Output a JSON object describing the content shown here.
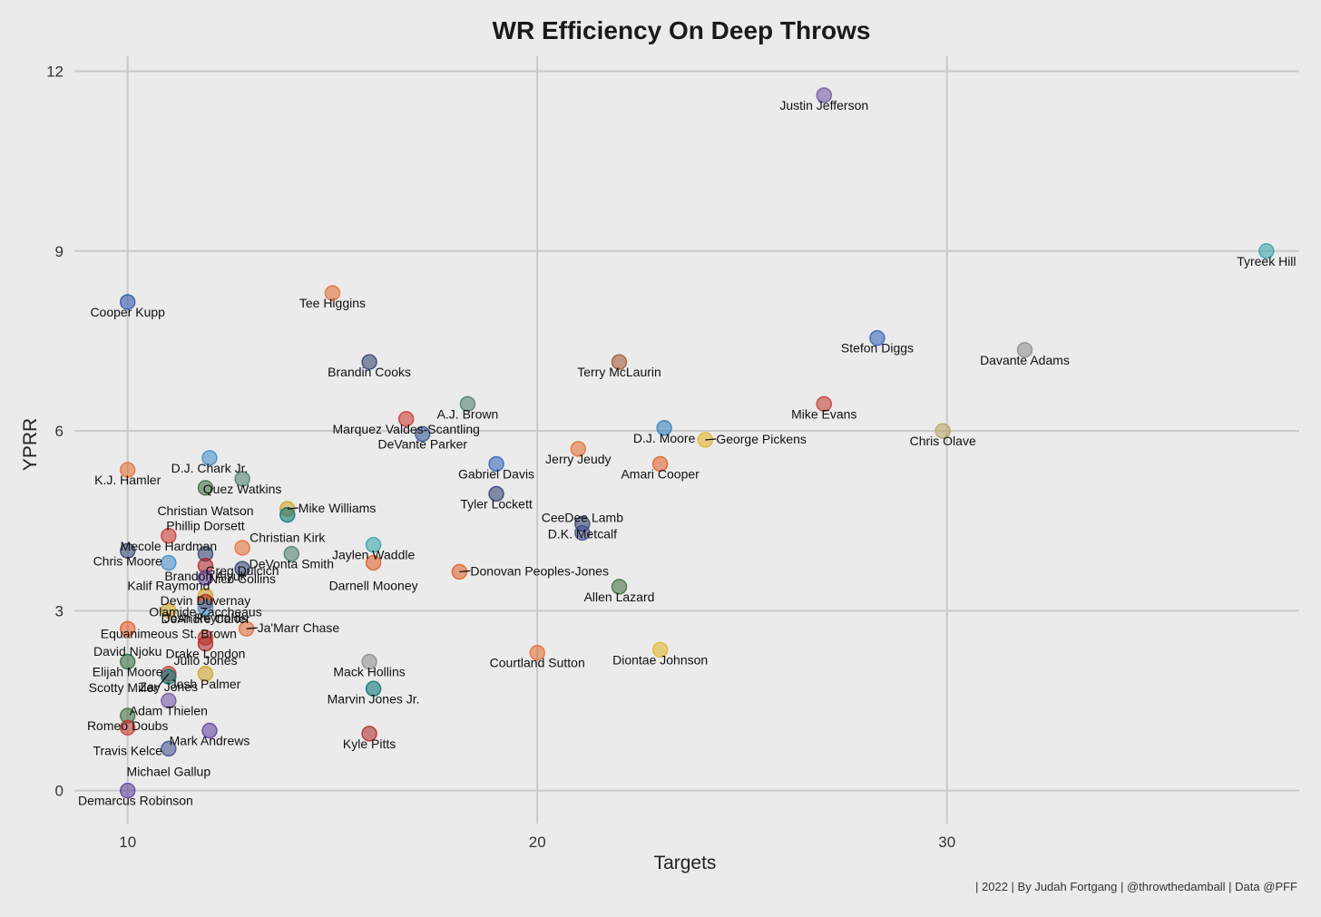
{
  "chart_data": {
    "type": "scatter",
    "title": "WR Efficiency On Deep Throws",
    "xlabel": "Targets",
    "ylabel": "YPRR",
    "xlim": [
      8.7,
      38.6
    ],
    "ylim": [
      -0.55,
      12.25
    ],
    "xticks": [
      10,
      20,
      30
    ],
    "yticks": [
      0,
      3,
      6,
      9,
      12
    ],
    "grid": true,
    "caption": "| 2022 | By Judah Fortgang | @throwthedamball | Data @PFF",
    "points": [
      {
        "name": "Justin Jefferson",
        "x": 27.0,
        "y": 11.6,
        "color": "#6b4fa0"
      },
      {
        "name": "Tyreek Hill",
        "x": 37.8,
        "y": 9.0,
        "color": "#2fa3a6"
      },
      {
        "name": "Tee Higgins",
        "x": 15.0,
        "y": 8.3,
        "color": "#e36a2e"
      },
      {
        "name": "Cooper Kupp",
        "x": 10.0,
        "y": 8.15,
        "color": "#2a4fa8"
      },
      {
        "name": "Stefon Diggs",
        "x": 28.3,
        "y": 7.55,
        "color": "#2a5fb8"
      },
      {
        "name": "Davante Adams",
        "x": 31.9,
        "y": 7.35,
        "color": "#8a8a8a"
      },
      {
        "name": "Brandin Cooks",
        "x": 15.9,
        "y": 7.15,
        "color": "#2b3d6b"
      },
      {
        "name": "Terry McLaurin",
        "x": 22.0,
        "y": 7.15,
        "color": "#a0522d"
      },
      {
        "name": "Mike Evans",
        "x": 27.0,
        "y": 6.45,
        "color": "#c0392b"
      },
      {
        "name": "A.J. Brown",
        "x": 18.3,
        "y": 6.45,
        "color": "#4a7a6a"
      },
      {
        "name": "Marquez Valdes-Scantling",
        "x": 16.8,
        "y": 6.2,
        "color": "#c8302a"
      },
      {
        "name": "D.J. Moore",
        "x": 23.1,
        "y": 6.05,
        "color": "#2a7ab8"
      },
      {
        "name": "Chris Olave",
        "x": 29.9,
        "y": 6.0,
        "color": "#b8a060"
      },
      {
        "name": "DeVante Parker",
        "x": 17.2,
        "y": 5.95,
        "color": "#2a4a8a"
      },
      {
        "name": "George Pickens",
        "x": 24.1,
        "y": 5.85,
        "color": "#e0b020"
      },
      {
        "name": "Jerry Jeudy",
        "x": 21.0,
        "y": 5.7,
        "color": "#e36a2e"
      },
      {
        "name": "D.J. Chark Jr.",
        "x": 12.0,
        "y": 5.55,
        "color": "#3a8ac8"
      },
      {
        "name": "Gabriel Davis",
        "x": 19.0,
        "y": 5.45,
        "color": "#2a5fb8"
      },
      {
        "name": "Amari Cooper",
        "x": 23.0,
        "y": 5.45,
        "color": "#e05a20"
      },
      {
        "name": "K.J. Hamler",
        "x": 10.0,
        "y": 5.35,
        "color": "#e36a2e"
      },
      {
        "name": "Quez Watkins",
        "x": 12.8,
        "y": 5.2,
        "color": "#4a7a6a"
      },
      {
        "name": "Christian Watson",
        "x": 11.9,
        "y": 5.05,
        "color": "#3a6a3a"
      },
      {
        "name": "Tyler Lockett",
        "x": 19.0,
        "y": 4.95,
        "color": "#2a3a6a"
      },
      {
        "name": "Mike Williams",
        "x": 13.9,
        "y": 4.7,
        "color": "#d0a020"
      },
      {
        "name": "Christian Kirk",
        "x": 13.9,
        "y": 4.6,
        "color": "#007070"
      },
      {
        "name": "D.K. Metcalf",
        "x": 21.1,
        "y": 4.45,
        "color": "#2a3a6a"
      },
      {
        "name": "CeeDee Lamb",
        "x": 21.1,
        "y": 4.3,
        "color": "#3a4a8a"
      },
      {
        "name": "Mecole Hardman",
        "x": 11.0,
        "y": 4.25,
        "color": "#c8302a"
      },
      {
        "name": "Jaylen Waddle",
        "x": 16.0,
        "y": 4.1,
        "color": "#2fa3a6"
      },
      {
        "name": "Greg Dulcich",
        "x": 12.8,
        "y": 4.05,
        "color": "#e36a2e"
      },
      {
        "name": "Chris Moore",
        "x": 10.0,
        "y": 4.0,
        "color": "#2b3d6b"
      },
      {
        "name": "DeVonta Smith",
        "x": 14.0,
        "y": 3.95,
        "color": "#4a7a6a"
      },
      {
        "name": "Phillip Dorsett",
        "x": 11.9,
        "y": 3.95,
        "color": "#2b3d6b"
      },
      {
        "name": "Kalif Raymond",
        "x": 11.0,
        "y": 3.8,
        "color": "#3a8ac8"
      },
      {
        "name": "Darnell Mooney",
        "x": 16.0,
        "y": 3.8,
        "color": "#e05a20"
      },
      {
        "name": "Brandon Aiyuk",
        "x": 11.9,
        "y": 3.75,
        "color": "#b02020"
      },
      {
        "name": "Nico Collins",
        "x": 12.8,
        "y": 3.7,
        "color": "#2b3d6b"
      },
      {
        "name": "Donovan Peoples-Jones",
        "x": 18.1,
        "y": 3.65,
        "color": "#e05a20"
      },
      {
        "name": "Devin Duvernay",
        "x": 11.9,
        "y": 3.55,
        "color": "#5a3a9a"
      },
      {
        "name": "Allen Lazard",
        "x": 22.0,
        "y": 3.4,
        "color": "#3a6a3a"
      },
      {
        "name": "DeAndre Carter",
        "x": 11.9,
        "y": 3.25,
        "color": "#d0a020"
      },
      {
        "name": "Olamide Zaccheaus",
        "x": 11.9,
        "y": 3.15,
        "color": "#b02020"
      },
      {
        "name": "Josh Reynolds",
        "x": 11.9,
        "y": 3.05,
        "color": "#3a8ac8"
      },
      {
        "name": "Equanimeous St. Brown",
        "x": 11.0,
        "y": 3.0,
        "color": "#d0a020"
      },
      {
        "name": "David Njoku",
        "x": 10.0,
        "y": 2.7,
        "color": "#e05a20"
      },
      {
        "name": "Ja'Marr Chase",
        "x": 12.9,
        "y": 2.7,
        "color": "#e36a2e"
      },
      {
        "name": "Julio Jones",
        "x": 11.9,
        "y": 2.55,
        "color": "#c0392b"
      },
      {
        "name": "Drake London",
        "x": 11.9,
        "y": 2.45,
        "color": "#b02020"
      },
      {
        "name": "Courtland Sutton",
        "x": 20.0,
        "y": 2.3,
        "color": "#e36a2e"
      },
      {
        "name": "Diontae Johnson",
        "x": 23.0,
        "y": 2.35,
        "color": "#e0b020"
      },
      {
        "name": "Mack Hollins",
        "x": 15.9,
        "y": 2.15,
        "color": "#8a8a8a"
      },
      {
        "name": "Elijah Moore",
        "x": 10.0,
        "y": 2.15,
        "color": "#2a6a3a"
      },
      {
        "name": "Josh Palmer",
        "x": 11.9,
        "y": 1.95,
        "color": "#d0a020"
      },
      {
        "name": "Scotty Miller",
        "x": 11.0,
        "y": 1.95,
        "color": "#c0392b"
      },
      {
        "name": "Zay Jones",
        "x": 11.0,
        "y": 1.9,
        "color": "#007070"
      },
      {
        "name": "Marvin Jones Jr.",
        "x": 16.0,
        "y": 1.7,
        "color": "#007070"
      },
      {
        "name": "Romeo Doubs",
        "x": 10.0,
        "y": 1.25,
        "color": "#3a6a3a"
      },
      {
        "name": "Adam Thielen",
        "x": 11.0,
        "y": 1.5,
        "color": "#6b4fa0"
      },
      {
        "name": "Travis Kelce",
        "x": 10.0,
        "y": 1.05,
        "color": "#c8302a"
      },
      {
        "name": "Mark Andrews",
        "x": 12.0,
        "y": 1.0,
        "color": "#5a3a9a"
      },
      {
        "name": "Kyle Pitts",
        "x": 15.9,
        "y": 0.95,
        "color": "#b02020"
      },
      {
        "name": "Michael Gallup",
        "x": 11.0,
        "y": 0.7,
        "color": "#3a4a8a"
      },
      {
        "name": "Demarcus Robinson",
        "x": 10.0,
        "y": 0.0,
        "color": "#5a3a9a"
      }
    ]
  }
}
